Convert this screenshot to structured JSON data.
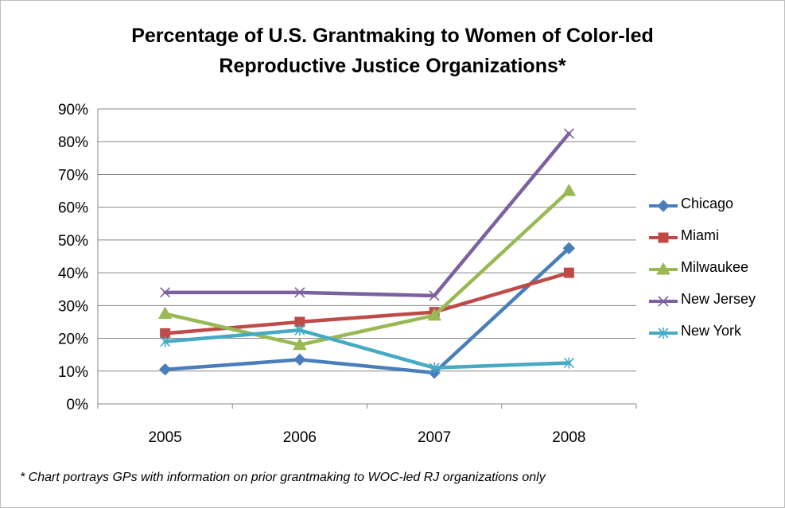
{
  "title": {
    "line1": "Percentage of U.S. Grantmaking to  Women of  Color-led",
    "line2": "Reproductive Justice Organizations*"
  },
  "footnote": "* Chart portrays GPs with information on prior grantmaking to WOC-led RJ organizations only",
  "chart_data": {
    "type": "line",
    "title": "Percentage of U.S. Grantmaking to  Women of  Color-led Reproductive Justice Organizations*",
    "xlabel": "",
    "ylabel": "",
    "categories": [
      "2005",
      "2006",
      "2007",
      "2008"
    ],
    "y_ticks": [
      "0%",
      "10%",
      "20%",
      "30%",
      "40%",
      "50%",
      "60%",
      "70%",
      "80%",
      "90%"
    ],
    "ylim": [
      0,
      90
    ],
    "grid": "horizontal",
    "legend": "right",
    "series": [
      {
        "name": "Chicago",
        "values": [
          10.5,
          13.5,
          9.5,
          47.5
        ],
        "color": "#4a7ebb",
        "marker": "diamond"
      },
      {
        "name": "Miami",
        "values": [
          21.5,
          25,
          28,
          40
        ],
        "color": "#be4b48",
        "marker": "square"
      },
      {
        "name": "Milwaukee",
        "values": [
          27.5,
          18,
          27,
          65
        ],
        "color": "#98b954",
        "marker": "triangle"
      },
      {
        "name": "New Jersey",
        "values": [
          34,
          34,
          33,
          82.5
        ],
        "color": "#7d60a0",
        "marker": "x"
      },
      {
        "name": "New York",
        "values": [
          19,
          22.5,
          11,
          12.5
        ],
        "color": "#46aac5",
        "marker": "asterisk"
      }
    ]
  }
}
